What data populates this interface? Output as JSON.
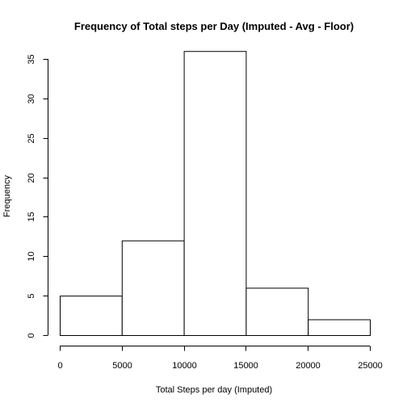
{
  "chart_data": {
    "type": "bar",
    "title": "Frequency of Total steps per Day (Imputed - Avg - Floor)",
    "xlabel": "Total Steps per day (Imputed)",
    "ylabel": "Frequency",
    "bins": [
      {
        "from": 0,
        "to": 5000,
        "count": 5
      },
      {
        "from": 5000,
        "to": 10000,
        "count": 12
      },
      {
        "from": 10000,
        "to": 15000,
        "count": 36
      },
      {
        "from": 15000,
        "to": 20000,
        "count": 6
      },
      {
        "from": 20000,
        "to": 25000,
        "count": 2
      }
    ],
    "xlim": [
      0,
      25000
    ],
    "ylim": [
      0,
      35
    ],
    "xticks": [
      "0",
      "5000",
      "10000",
      "15000",
      "20000",
      "25000"
    ],
    "yticks": [
      "0",
      "5",
      "10",
      "15",
      "20",
      "25",
      "30",
      "35"
    ],
    "grid": false,
    "bar_fill": "#ffffff",
    "bar_stroke": "#000000"
  }
}
